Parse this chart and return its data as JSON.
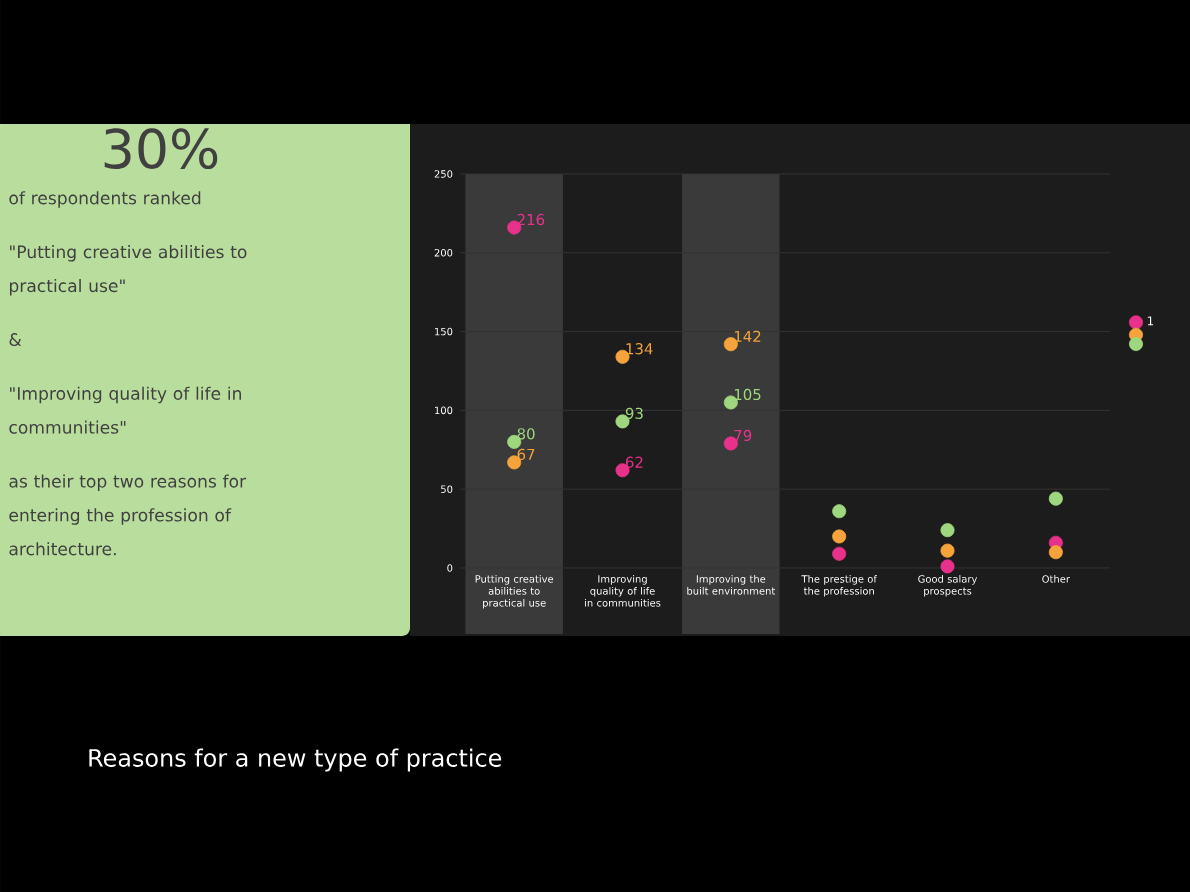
{
  "chart_data": [
    {
      "type": "other",
      "annotations": [
        "30%",
        "of respondents ranked",
        "\"Putting creative abilities to practical use\"",
        "&",
        "\"Improving quality of life in communities\"",
        "as their top two reasons for entering the profession of architecture."
      ]
    },
    {
      "type": "scatter",
      "title": "Reasons for a new type of practice",
      "categories": [
        "Putting creative abilities to practical use",
        "Improving quality of life in communities",
        "Improving the built environment",
        "The prestige of the profession",
        "Good salary prospects",
        "Other"
      ],
      "series": [
        {
          "name": "1",
          "color": "#e8318a",
          "values": [
            216,
            62,
            79,
            9,
            1,
            16
          ],
          "value_labels": [
            "216",
            "62",
            "79",
            null,
            null,
            null
          ]
        },
        {
          "color": "#f5a33a",
          "values": [
            67,
            134,
            142,
            20,
            11,
            10
          ],
          "value_labels": [
            "67",
            "134",
            "142",
            null,
            null,
            null
          ]
        },
        {
          "color": "#9fd77f",
          "values": [
            80,
            93,
            105,
            36,
            24,
            44
          ],
          "value_labels": [
            "80",
            "93",
            "105",
            null,
            null,
            null
          ]
        }
      ],
      "ylim": [
        0,
        250
      ],
      "yticks": [
        0,
        50,
        100,
        150,
        200,
        250
      ],
      "grid": "y",
      "legend": "right",
      "marker": "circle",
      "bands": [
        {
          "axis": "x",
          "from": "Putting creative abilities to practical use",
          "to": "Putting creative abilities to practical use",
          "color": "#3a3a3a"
        },
        {
          "axis": "x",
          "from": "Improving the built environment",
          "to": "Improving the built environment",
          "color": "#3a3a3a"
        }
      ]
    }
  ]
}
